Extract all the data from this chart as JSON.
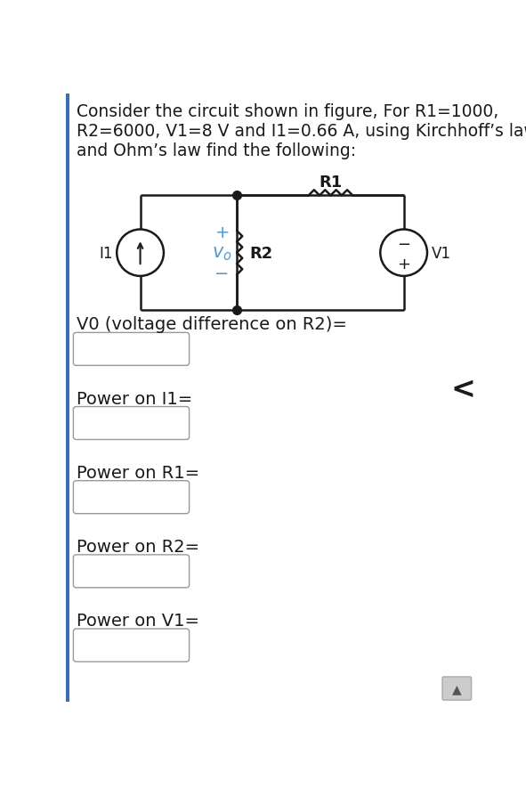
{
  "bg_color": "#ffffff",
  "circuit_bg": "#ffffff",
  "title_text": "Consider the circuit shown in figure, For R1=1000,\nR2=6000, V1=8 V and I1=0.66 A, using Kirchhoff’s laws\nand Ohm’s law find the following:",
  "title_fontsize": 13.5,
  "title_color": "#1a1a1a",
  "circuit_line_color": "#1a1a1a",
  "R1_label": "R1",
  "R2_label": "R2",
  "V1_label": "V1",
  "I1_label": "I1",
  "V0_label": "$v_o$",
  "labels": [
    "V0 (voltage difference on R2)=",
    "Power on I1=",
    "Power on R1=",
    "Power on R2=",
    "Power on V1="
  ],
  "label_fontsize": 14,
  "box_color": "#ffffff",
  "box_border_color": "#999999",
  "arrow_color": "#5599cc",
  "plus_minus_color": "#5599cc",
  "left_bar_color": "#3a6eb5"
}
